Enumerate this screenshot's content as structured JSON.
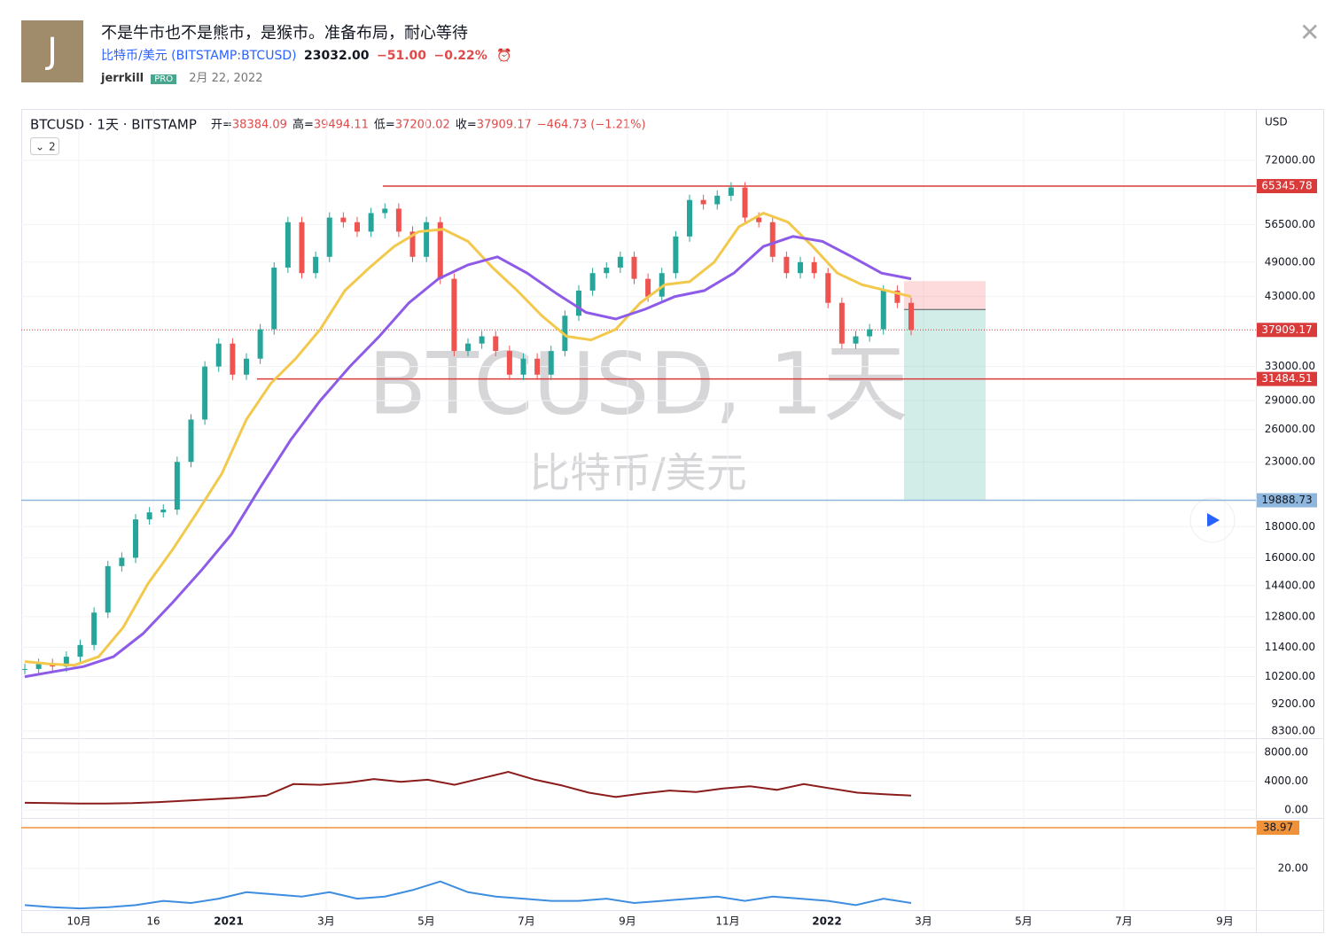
{
  "header": {
    "avatar": "J",
    "title": "不是牛市也不是熊市，是猴市。准备布局，耐心等待",
    "symbol": "比特币/美元 (BITSTAMP:BTCUSD)",
    "price": "23032.00",
    "change": "−51.00",
    "change_pct": "−0.22%",
    "author": "jerrkill",
    "badge": "PRO",
    "date": "2月 22, 2022"
  },
  "chart_data": [
    {
      "type": "candle",
      "title": "BTCUSD · 1天 · BITSTAMP",
      "legend_count": "2",
      "currency": "USD",
      "ohlc": [
        {
          "label": "开=",
          "value": 38384.09
        },
        {
          "label": "高=",
          "value": 39494.11
        },
        {
          "label": "低=",
          "value": 37200.02
        },
        {
          "label": "收=",
          "value": 37909.17
        }
      ],
      "change_text": "−464.73 (−1.21%)",
      "watermark": "BTCUSD, 1天",
      "watermark_sub": "比特币/美元",
      "log_scale": true,
      "ylim": [
        8080,
        87500
      ],
      "yticks": [
        {
          "value": 72000,
          "label": "72000.00"
        },
        {
          "value": 56500,
          "label": "56500.00"
        },
        {
          "value": 49000,
          "label": "49000.00"
        },
        {
          "value": 43000,
          "label": "43000.00"
        },
        {
          "value": 33000,
          "label": "33000.00"
        },
        {
          "value": 29000,
          "label": "29000.00"
        },
        {
          "value": 26000,
          "label": "26000.00"
        },
        {
          "value": 23000,
          "label": "23000.00"
        },
        {
          "value": 18000,
          "label": "18000.00"
        },
        {
          "value": 16000,
          "label": "16000.00"
        },
        {
          "value": 14400,
          "label": "14400.00"
        },
        {
          "value": 12800,
          "label": "12800.00"
        },
        {
          "value": 11400,
          "label": "11400.00"
        },
        {
          "value": 10200,
          "label": "10200.00"
        },
        {
          "value": 9200,
          "label": "9200.00"
        },
        {
          "value": 8300,
          "label": "8300.00"
        }
      ],
      "xtick_labels": [
        "10月",
        "16",
        "2021",
        "3月",
        "5月",
        "7月",
        "9月",
        "11月",
        "2022",
        "3月",
        "5月",
        "7月",
        "9月"
      ],
      "series": [
        {
          "name": "BTCUSD",
          "up_color": "#26a69a",
          "down_color": "#ef5350",
          "values": [
            10500,
            10700,
            10600,
            11000,
            11500,
            13000,
            15500,
            16000,
            18500,
            19000,
            19200,
            23000,
            27000,
            33000,
            36000,
            32000,
            34000,
            38000,
            48000,
            57000,
            47000,
            50000,
            58000,
            57000,
            55000,
            59000,
            60000,
            55000,
            50000,
            57000,
            46000,
            35000,
            36000,
            37000,
            35000,
            32000,
            34000,
            32000,
            35000,
            40000,
            44000,
            47000,
            48000,
            50000,
            46000,
            43000,
            47000,
            54000,
            62000,
            61000,
            63000,
            65000,
            58000,
            57000,
            50000,
            47000,
            49000,
            47000,
            42000,
            36000,
            37000,
            38000,
            44000,
            42000,
            37909.17
          ]
        },
        {
          "name": "MA1",
          "color": "#f2c94c",
          "values": [
            10800,
            10700,
            10650,
            11000,
            12300,
            14500,
            16500,
            19000,
            22000,
            27000,
            31000,
            34000,
            38000,
            44000,
            48000,
            52000,
            55000,
            55500,
            53000,
            48000,
            44000,
            40000,
            37000,
            36500,
            38000,
            42000,
            45000,
            45500,
            49000,
            56000,
            59000,
            57000,
            52000,
            47000,
            45000,
            44000,
            43000
          ]
        },
        {
          "name": "MA2",
          "color": "#8e5ae8",
          "values": [
            10200,
            10400,
            10600,
            11000,
            12000,
            13500,
            15300,
            17500,
            21000,
            25000,
            29000,
            33000,
            37000,
            42000,
            46000,
            48500,
            50000,
            47000,
            43500,
            40500,
            39500,
            41000,
            43000,
            44000,
            47000,
            52000,
            54000,
            53000,
            50000,
            47000,
            46000
          ]
        }
      ],
      "levels": [
        {
          "value": 65345.78,
          "color": "#d93a3a",
          "style": "solid"
        },
        {
          "value": 31484.51,
          "color": "#d93a3a",
          "style": "solid"
        },
        {
          "value": 19888.73,
          "color": "#8fb7dd",
          "style": "solid"
        },
        {
          "value": 37909.17,
          "color": "#d93a3a",
          "style": "dotted"
        }
      ],
      "position": {
        "stop": 45600,
        "entry": 40950,
        "target": 19950
      }
    },
    {
      "type": "line",
      "ylim": [
        -1100,
        9970
      ],
      "yticks": [
        {
          "value": 8000,
          "label": "8000.00"
        },
        {
          "value": 4000,
          "label": "4000.00"
        },
        {
          "value": 0,
          "label": "0.00"
        }
      ],
      "series": [
        {
          "name": "indicator-1",
          "color": "#8b1c1c",
          "values": [
            1000,
            950,
            900,
            900,
            950,
            1100,
            1300,
            1500,
            1700,
            2000,
            3600,
            3500,
            3800,
            4300,
            3900,
            4200,
            3500,
            4400,
            5300,
            4200,
            3400,
            2400,
            1800,
            2300,
            2700,
            2500,
            3000,
            3300,
            2800,
            3600,
            3000,
            2400,
            2200,
            2000
          ]
        }
      ]
    },
    {
      "type": "line",
      "ylim": [
        0.7,
        43.5
      ],
      "yticks": [
        {
          "value": 20,
          "label": "20.00"
        }
      ],
      "level": 38.97,
      "series": [
        {
          "name": "indicator-2",
          "color": "#3d8de0",
          "values": [
            3,
            2,
            1.5,
            2,
            3,
            5,
            4,
            6,
            9,
            8,
            7,
            9,
            6,
            7,
            10,
            14,
            9,
            7,
            6,
            5,
            5,
            6,
            4,
            5,
            6,
            7,
            5,
            7,
            6,
            5,
            3,
            6,
            4
          ]
        }
      ]
    }
  ]
}
